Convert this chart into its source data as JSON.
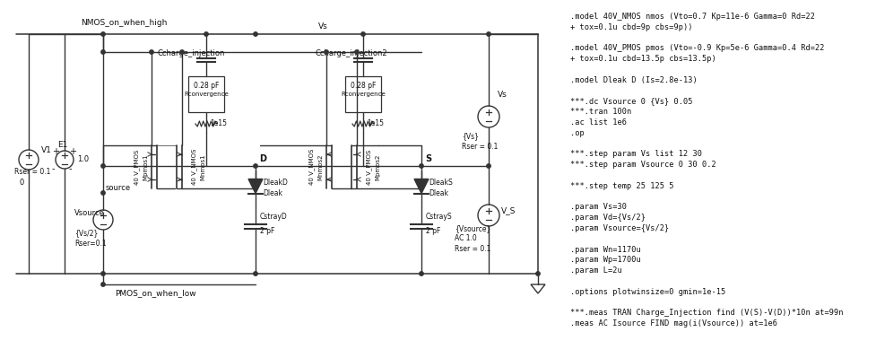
{
  "bg_color": "#ffffff",
  "line_color": "#333333",
  "text_color": "#111111",
  "fig_width": 9.77,
  "fig_height": 3.99,
  "right_text_lines": [
    ".model 40V_NMOS nmos (Vto=0.7 Kp=11e-6 Gamma=0 Rd=22",
    "+ tox=0.1u cbd=9p cbs=9p))",
    "",
    ".model 40V_PMOS pmos (Vto=-0.9 Kp=5e-6 Gamma=0.4 Rd=22",
    "+ tox=0.1u cbd=13.5p cbs=13.5p)",
    "",
    ".model Dleak D (Is=2.8e-13)",
    "",
    "***.dc Vsource 0 {Vs} 0.05",
    "***.tran 100n",
    ".ac list 1e6",
    ".op",
    "",
    "***.step param Vs list 12 30",
    "***.step param Vsource 0 30 0.2",
    "",
    "***.step temp 25 125 5",
    "",
    ".param Vs=30",
    ".param Vd={Vs/2}",
    ".param Vsource={Vs/2}",
    "",
    ".param Wn=1170u",
    ".param Wp=1700u",
    ".param L=2u",
    "",
    ".options plotwinsize=0 gmin=1e-15",
    "",
    "***.meas TRAN Charge_Injection find (V(S)-V(D))*10n at=99n",
    ".meas AC Isource FIND mag(i(Vsource)) at=1e6"
  ]
}
